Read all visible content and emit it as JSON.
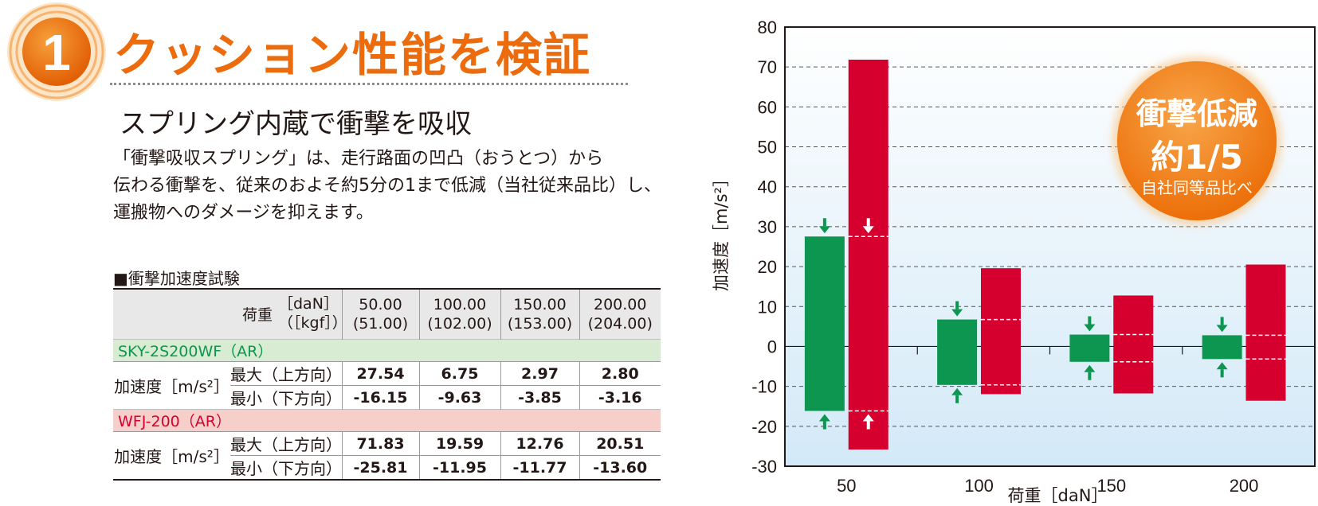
{
  "heading": {
    "number": "1",
    "title": "クッション性能を検証",
    "subtitle": "スプリング内蔵で衝撃を吸収"
  },
  "body_lines": [
    "「衝撃吸収スプリング」は、走行路面の凹凸（おうとつ）から",
    "伝わる衝撃を、従来のおよそ約5分の1まで低減（当社従来品比）し、",
    "運搬物へのダメージを抑えます。"
  ],
  "table": {
    "title": "■衝撃加速度試験",
    "load_label": "荷重",
    "unit_dan": "［daN］",
    "unit_kgf": "（［kgf］）",
    "columns": [
      {
        "dan": "50.00",
        "kgf": "(51.00)"
      },
      {
        "dan": "100.00",
        "kgf": "(102.00)"
      },
      {
        "dan": "150.00",
        "kgf": "(153.00)"
      },
      {
        "dan": "200.00",
        "kgf": "(204.00)"
      }
    ],
    "sections": [
      {
        "name": "SKY-2S200WF（AR）",
        "accel_label": "加速度［m/s²］",
        "rows": [
          {
            "label": "最大（上方向）",
            "values": [
              "27.54",
              "6.75",
              "2.97",
              "2.80"
            ]
          },
          {
            "label": "最小（下方向）",
            "values": [
              "-16.15",
              "-9.63",
              "-3.85",
              "-3.16"
            ]
          }
        ]
      },
      {
        "name": "WFJ-200（AR）",
        "accel_label": "加速度［m/s²］",
        "rows": [
          {
            "label": "最大（上方向）",
            "values": [
              "71.83",
              "19.59",
              "12.76",
              "20.51"
            ]
          },
          {
            "label": "最小（下方向）",
            "values": [
              "-25.81",
              "-11.95",
              "-11.77",
              "-13.60"
            ]
          }
        ]
      }
    ]
  },
  "chart_data": {
    "type": "bar",
    "categories": [
      "50",
      "100",
      "150",
      "200"
    ],
    "series": [
      {
        "max": [
          27.54,
          6.75,
          2.97,
          2.8
        ],
        "min": [
          -16.15,
          -9.63,
          -3.85,
          -3.16
        ],
        "color": "#0d9650"
      },
      {
        "max": [
          71.83,
          19.59,
          12.76,
          20.51
        ],
        "min": [
          -25.81,
          -11.95,
          -11.77,
          -13.6
        ],
        "color": "#d6002f"
      }
    ],
    "xlabel": "荷重［daN］",
    "ylabel": "加速度［m/s²］",
    "ylim": [
      -30,
      80
    ],
    "yticks": [
      "80",
      "70",
      "60",
      "50",
      "40",
      "30",
      "20",
      "10",
      "0",
      "-10",
      "-20",
      "-30"
    ],
    "grid": true
  },
  "callout": {
    "line1": "衝撃低減",
    "line2": "約1/5",
    "line3": "自社同等品比べ",
    "color": "#ee7d0f"
  }
}
